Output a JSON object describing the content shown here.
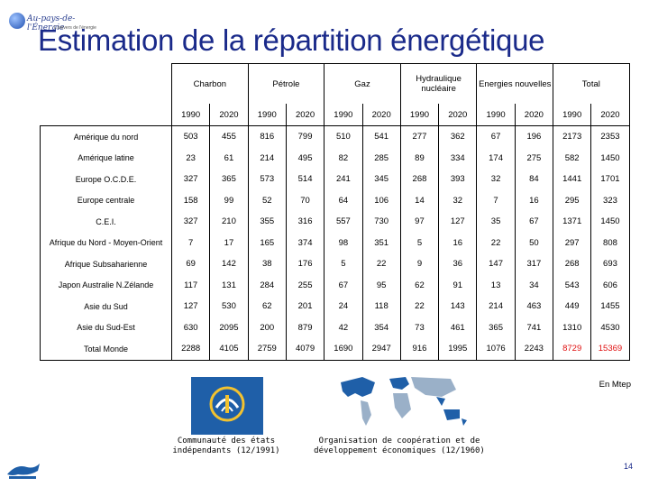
{
  "logo": {
    "brand": "Au-pays-de-l'Énergie",
    "tagline": "L'univers de l'énergie"
  },
  "title": "Estimation de la répartition énergétique",
  "table": {
    "groups": [
      "Charbon",
      "Pétrole",
      "Gaz",
      "Hydraulique nucléaire",
      "Energies nouvelles",
      "Total"
    ],
    "years": [
      "1990",
      "2020"
    ],
    "rows": [
      {
        "region": "Amérique du nord",
        "values": [
          "503",
          "455",
          "816",
          "799",
          "510",
          "541",
          "277",
          "362",
          "67",
          "196",
          "2173",
          "2353"
        ]
      },
      {
        "region": "Amérique latine",
        "values": [
          "23",
          "61",
          "214",
          "495",
          "82",
          "285",
          "89",
          "334",
          "174",
          "275",
          "582",
          "1450"
        ]
      },
      {
        "region": "Europe O.C.D.E.",
        "values": [
          "327",
          "365",
          "573",
          "514",
          "241",
          "345",
          "268",
          "393",
          "32",
          "84",
          "1441",
          "1701"
        ]
      },
      {
        "region": "Europe centrale",
        "values": [
          "158",
          "99",
          "52",
          "70",
          "64",
          "106",
          "14",
          "32",
          "7",
          "16",
          "295",
          "323"
        ]
      },
      {
        "region": "C.E.I.",
        "values": [
          "327",
          "210",
          "355",
          "316",
          "557",
          "730",
          "97",
          "127",
          "35",
          "67",
          "1371",
          "1450"
        ]
      },
      {
        "region": "Afrique du Nord - Moyen-Orient",
        "values": [
          "7",
          "17",
          "165",
          "374",
          "98",
          "351",
          "5",
          "16",
          "22",
          "50",
          "297",
          "808"
        ]
      },
      {
        "region": "Afrique Subsaharienne",
        "values": [
          "69",
          "142",
          "38",
          "176",
          "5",
          "22",
          "9",
          "36",
          "147",
          "317",
          "268",
          "693"
        ]
      },
      {
        "region": "Japon Australie N.Zélande",
        "values": [
          "117",
          "131",
          "284",
          "255",
          "67",
          "95",
          "62",
          "91",
          "13",
          "34",
          "543",
          "606"
        ]
      },
      {
        "region": "Asie du Sud",
        "values": [
          "127",
          "530",
          "62",
          "201",
          "24",
          "118",
          "22",
          "143",
          "214",
          "463",
          "449",
          "1455"
        ]
      },
      {
        "region": "Asie du Sud-Est",
        "values": [
          "630",
          "2095",
          "200",
          "879",
          "42",
          "354",
          "73",
          "461",
          "365",
          "741",
          "1310",
          "4530"
        ]
      },
      {
        "region": "Total Monde",
        "values": [
          "2288",
          "4105",
          "2759",
          "4079",
          "1690",
          "2947",
          "916",
          "1995",
          "1076",
          "2243",
          "8729",
          "15369"
        ]
      }
    ],
    "highlight_color": "#e01010"
  },
  "unit": "En Mtep",
  "cis": {
    "icon": "cis-emblem-icon",
    "caption": "Communauté des états indépendants (12/1991)"
  },
  "ocde": {
    "icon": "world-map-icon",
    "caption": "Organisation de coopération et de développement économiques (12/1960)"
  },
  "page_number": "14",
  "colors": {
    "title": "#1a2a8a",
    "highlight": "#e01010"
  }
}
